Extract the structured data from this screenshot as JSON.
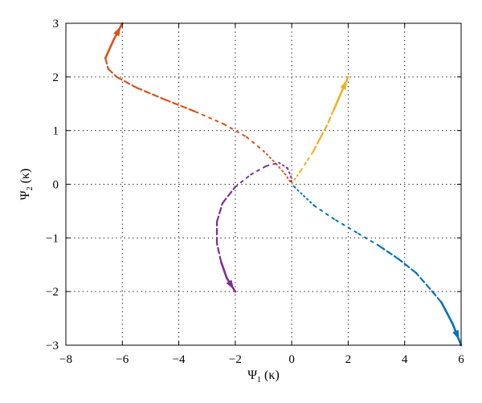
{
  "chart_data": {
    "type": "line",
    "title": "",
    "xlabel": {
      "symbol": "Ψ",
      "subscript": "1",
      "suffix": " (κ)"
    },
    "ylabel": {
      "symbol": "Ψ",
      "subscript": "2",
      "suffix": " (κ)"
    },
    "xlim": [
      -8,
      6
    ],
    "ylim": [
      -3,
      3
    ],
    "xticks": [
      -8,
      -6,
      -4,
      -2,
      0,
      2,
      4,
      6
    ],
    "yticks": [
      -3,
      -2,
      -1,
      0,
      1,
      2,
      3
    ],
    "xtick_labels": [
      "−8",
      "−6",
      "−4",
      "−2",
      "0",
      "2",
      "4",
      "6"
    ],
    "ytick_labels": [
      "−3",
      "−2",
      "−1",
      "0",
      "1",
      "2",
      "3"
    ],
    "grid": true,
    "series": [
      {
        "color": "#0072BD",
        "points": [
          [
            6.0,
            -3.0
          ],
          [
            5.7,
            -2.6
          ],
          [
            5.3,
            -2.2
          ],
          [
            4.9,
            -1.95
          ],
          [
            4.4,
            -1.65
          ],
          [
            3.8,
            -1.4
          ],
          [
            3.1,
            -1.15
          ],
          [
            2.3,
            -0.9
          ],
          [
            1.5,
            -0.65
          ],
          [
            0.8,
            -0.4
          ],
          [
            0.35,
            -0.18
          ],
          [
            0.1,
            -0.05
          ],
          [
            0.0,
            0.0
          ]
        ]
      },
      {
        "color": "#D95319",
        "points": [
          [
            -6.0,
            3.0
          ],
          [
            -6.3,
            2.7
          ],
          [
            -6.6,
            2.35
          ],
          [
            -6.5,
            2.15
          ],
          [
            -6.2,
            2.0
          ],
          [
            -5.5,
            1.8
          ],
          [
            -4.5,
            1.58
          ],
          [
            -3.4,
            1.35
          ],
          [
            -2.4,
            1.12
          ],
          [
            -1.6,
            0.88
          ],
          [
            -1.0,
            0.62
          ],
          [
            -0.55,
            0.38
          ],
          [
            -0.25,
            0.2
          ],
          [
            -0.08,
            0.07
          ],
          [
            0.0,
            0.0
          ]
        ]
      },
      {
        "color": "#EDB120",
        "points": [
          [
            2.0,
            2.0
          ],
          [
            1.75,
            1.7
          ],
          [
            1.5,
            1.4
          ],
          [
            1.25,
            1.1
          ],
          [
            1.0,
            0.85
          ],
          [
            0.75,
            0.6
          ],
          [
            0.5,
            0.4
          ],
          [
            0.3,
            0.24
          ],
          [
            0.12,
            0.1
          ],
          [
            0.0,
            0.0
          ]
        ]
      },
      {
        "color": "#7E2F8E",
        "points": [
          [
            -2.0,
            -2.0
          ],
          [
            -2.3,
            -1.75
          ],
          [
            -2.5,
            -1.45
          ],
          [
            -2.65,
            -1.1
          ],
          [
            -2.65,
            -0.7
          ],
          [
            -2.45,
            -0.35
          ],
          [
            -2.0,
            -0.05
          ],
          [
            -1.45,
            0.18
          ],
          [
            -0.9,
            0.34
          ],
          [
            -0.45,
            0.4
          ],
          [
            -0.15,
            0.3
          ],
          [
            -0.03,
            0.15
          ],
          [
            0.0,
            0.0
          ]
        ]
      }
    ]
  }
}
